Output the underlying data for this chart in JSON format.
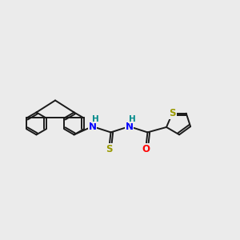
{
  "background_color": "#ebebeb",
  "bond_color": "#1a1a1a",
  "bond_width": 1.4,
  "N_color": "#0000ff",
  "S_color": "#999900",
  "O_color": "#ff0000",
  "H_color": "#008b8b",
  "font_size": 8.5,
  "fig_width": 3.0,
  "fig_height": 3.0,
  "dpi": 100,
  "xlim": [
    0,
    10
  ],
  "ylim": [
    0,
    10
  ]
}
